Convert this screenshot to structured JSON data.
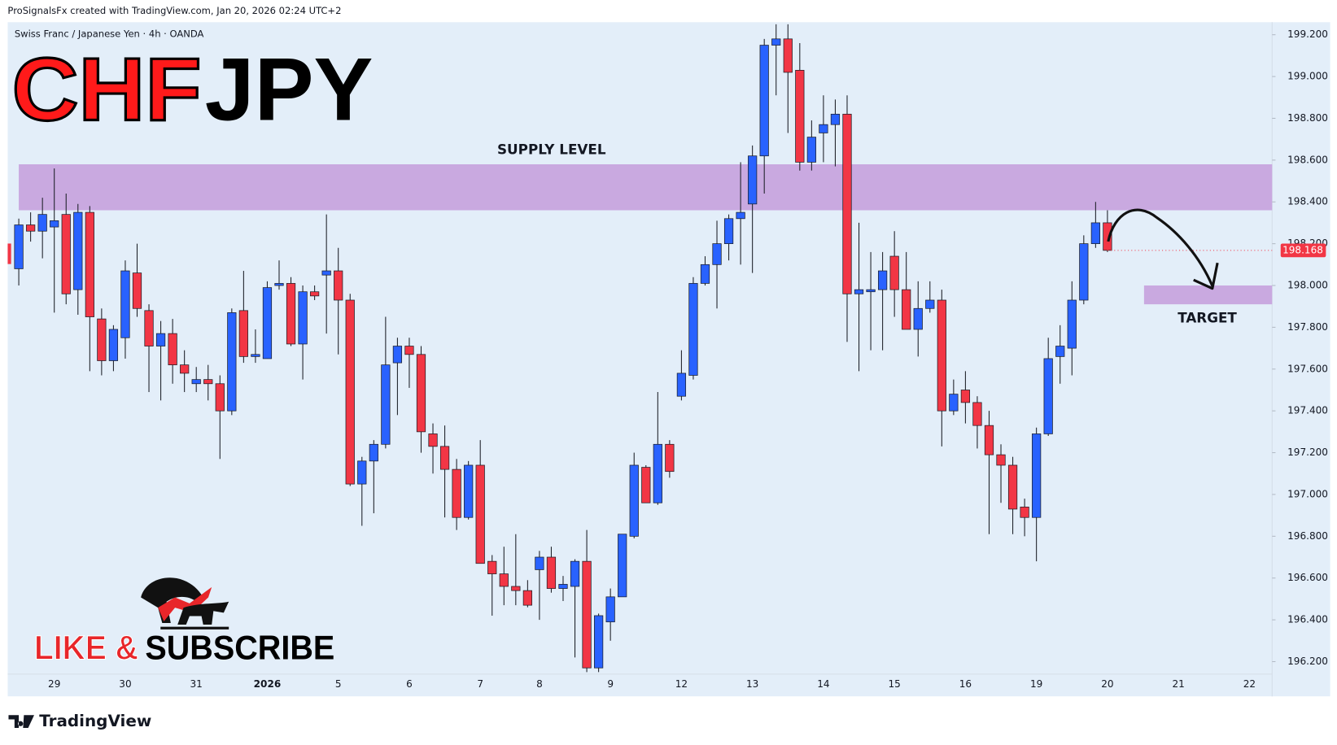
{
  "header": "ProSignalsFx created with TradingView.com, Jan 20, 2026 02:24 UTC+2",
  "footer": "TradingView",
  "call_to_action": [
    "LIKE &",
    "SUBSCRIBE"
  ],
  "chart_data": {
    "type": "candlestick",
    "title": {
      "base": "CHF",
      "quote": "JPY"
    },
    "subtitle": "Swiss Franc / Japanese Yen · 4h · OANDA",
    "up_color": "#2962ff",
    "down_color": "#f23645",
    "grid": false,
    "categories": [
      null,
      null,
      null,
      "29",
      null,
      null,
      null,
      null,
      null,
      "30",
      null,
      null,
      null,
      null,
      null,
      "31",
      null,
      null,
      null,
      null,
      null,
      "2026",
      null,
      null,
      null,
      null,
      null,
      "5",
      null,
      null,
      null,
      null,
      null,
      "6",
      null,
      null,
      null,
      null,
      null,
      "7",
      null,
      null,
      null,
      null,
      "8",
      null,
      null,
      null,
      null,
      null,
      "9",
      null,
      null,
      null,
      null,
      null,
      "12",
      null,
      null,
      null,
      null,
      null,
      "13",
      null,
      null,
      null,
      null,
      null,
      "14",
      null,
      null,
      null,
      null,
      null,
      "15",
      null,
      null,
      null,
      null,
      null,
      "16",
      null,
      null,
      null,
      null,
      null,
      "19",
      null,
      null,
      null,
      null,
      null,
      "20",
      null,
      null,
      null,
      null,
      null,
      "21",
      null,
      null,
      null,
      null,
      null,
      "22"
    ],
    "open": [
      198.08,
      198.29,
      198.26,
      198.28,
      198.34,
      197.98,
      198.35,
      197.84,
      197.64,
      197.75,
      198.06,
      197.88,
      197.71,
      197.77,
      197.62,
      197.53,
      197.55,
      197.53,
      197.4,
      197.88,
      197.66,
      197.65,
      198.0,
      198.01,
      197.72,
      197.97,
      198.05,
      198.07,
      197.93,
      197.05,
      197.16,
      197.24,
      197.63,
      197.71,
      197.67,
      197.29,
      197.23,
      197.12,
      196.89,
      197.14,
      196.68,
      196.62,
      196.56,
      196.54,
      196.64,
      196.7,
      196.55,
      196.56,
      196.68,
      196.17,
      196.39,
      196.51,
      196.8,
      197.13,
      196.96,
      197.24,
      197.47,
      197.57,
      198.01,
      198.1,
      198.2,
      198.32,
      198.39,
      198.62,
      199.15,
      199.18,
      199.03,
      198.59,
      198.73,
      198.77,
      198.82,
      197.96,
      197.97,
      197.98,
      198.14,
      197.98,
      197.79,
      197.89,
      197.93,
      197.4,
      197.5,
      197.44,
      197.33,
      197.19,
      197.14,
      196.94,
      196.89,
      197.29,
      197.66,
      197.7,
      197.93,
      198.2,
      198.3,
      null,
      null,
      null,
      null,
      null,
      null,
      null,
      null,
      null,
      null,
      null,
      null
    ],
    "high": [
      198.32,
      198.35,
      198.42,
      198.56,
      198.44,
      198.39,
      198.38,
      197.89,
      197.81,
      198.12,
      198.2,
      197.91,
      197.83,
      197.84,
      197.69,
      197.61,
      197.62,
      197.57,
      197.89,
      198.07,
      197.79,
      198.02,
      198.12,
      198.04,
      198.0,
      198.0,
      198.34,
      198.18,
      197.96,
      197.18,
      197.26,
      197.85,
      197.75,
      197.75,
      197.71,
      197.34,
      197.33,
      197.17,
      197.16,
      197.26,
      196.71,
      196.75,
      196.81,
      196.59,
      196.73,
      196.75,
      196.61,
      196.69,
      196.83,
      196.43,
      196.55,
      196.81,
      197.2,
      197.14,
      197.49,
      197.26,
      197.69,
      198.04,
      198.14,
      198.31,
      198.34,
      198.59,
      198.67,
      199.18,
      199.25,
      199.25,
      199.16,
      198.79,
      198.91,
      198.89,
      198.91,
      198.3,
      198.16,
      198.16,
      198.26,
      198.16,
      198.02,
      198.02,
      197.98,
      197.55,
      197.59,
      197.47,
      197.4,
      197.24,
      197.18,
      196.98,
      197.32,
      197.75,
      197.81,
      198.02,
      198.24,
      198.4,
      198.36,
      null,
      null,
      null,
      null,
      null,
      null,
      null,
      null,
      null,
      null,
      null,
      null
    ],
    "low": [
      198.0,
      198.21,
      198.13,
      197.87,
      197.91,
      197.86,
      197.59,
      197.57,
      197.59,
      197.65,
      197.85,
      197.49,
      197.45,
      197.53,
      197.49,
      197.49,
      197.45,
      197.17,
      197.38,
      197.63,
      197.63,
      197.65,
      197.98,
      197.71,
      197.55,
      197.93,
      197.77,
      197.67,
      197.04,
      196.85,
      196.91,
      197.22,
      197.38,
      197.51,
      197.2,
      197.1,
      196.89,
      196.83,
      196.88,
      196.67,
      196.42,
      196.47,
      196.47,
      196.46,
      196.4,
      196.53,
      196.49,
      196.22,
      196.15,
      196.15,
      196.3,
      196.51,
      196.79,
      196.96,
      196.95,
      197.08,
      197.45,
      197.55,
      198.0,
      197.89,
      198.12,
      198.1,
      198.06,
      198.44,
      198.91,
      198.73,
      198.55,
      198.55,
      198.59,
      198.57,
      197.73,
      197.59,
      197.69,
      197.69,
      197.85,
      197.79,
      197.66,
      197.87,
      197.23,
      197.38,
      197.34,
      197.22,
      196.81,
      196.96,
      196.81,
      196.8,
      196.68,
      197.28,
      197.53,
      197.57,
      197.91,
      198.18,
      198.16,
      null,
      null,
      null,
      null,
      null,
      null,
      null,
      null,
      null,
      null,
      null,
      null
    ],
    "close": [
      198.29,
      198.26,
      198.34,
      198.31,
      197.96,
      198.35,
      197.85,
      197.64,
      197.79,
      198.07,
      197.89,
      197.71,
      197.77,
      197.62,
      197.58,
      197.55,
      197.53,
      197.4,
      197.87,
      197.66,
      197.67,
      197.99,
      198.01,
      197.72,
      197.97,
      197.95,
      198.07,
      197.93,
      197.05,
      197.16,
      197.24,
      197.62,
      197.71,
      197.67,
      197.3,
      197.23,
      197.12,
      196.89,
      197.14,
      196.67,
      196.62,
      196.56,
      196.54,
      196.47,
      196.7,
      196.55,
      196.57,
      196.68,
      196.17,
      196.42,
      196.51,
      196.81,
      197.14,
      196.96,
      197.24,
      197.11,
      197.58,
      198.01,
      198.1,
      198.2,
      198.32,
      198.35,
      198.62,
      199.15,
      199.18,
      199.02,
      198.59,
      198.71,
      198.77,
      198.82,
      197.96,
      197.98,
      197.98,
      198.07,
      197.98,
      197.79,
      197.89,
      197.93,
      197.4,
      197.48,
      197.44,
      197.33,
      197.19,
      197.14,
      196.93,
      196.89,
      197.29,
      197.65,
      197.71,
      197.93,
      198.2,
      198.3,
      198.168,
      null,
      null,
      null,
      null,
      null,
      null,
      null,
      null,
      null,
      null,
      null,
      null
    ],
    "zones": [
      {
        "label": "SUPPLY LEVEL",
        "range": [
          198.36,
          198.58
        ],
        "color": "#c9a9e0"
      },
      {
        "label": "TARGET",
        "range": [
          197.91,
          198.0
        ],
        "color": "#c9a9e0"
      }
    ],
    "ylim": [
      196.14,
      199.26
    ],
    "yticks": [
      {
        "value": 196.2,
        "label": "196.200"
      },
      {
        "value": 196.4,
        "label": "196.400"
      },
      {
        "value": 196.6,
        "label": "196.600"
      },
      {
        "value": 196.8,
        "label": "196.800"
      },
      {
        "value": 197.0,
        "label": "197.000"
      },
      {
        "value": 197.2,
        "label": "197.200"
      },
      {
        "value": 197.4,
        "label": "197.400"
      },
      {
        "value": 197.6,
        "label": "197.600"
      },
      {
        "value": 197.8,
        "label": "197.800"
      },
      {
        "value": 198.0,
        "label": "198.000"
      },
      {
        "value": 198.2,
        "label": "198.200"
      },
      {
        "value": 198.4,
        "label": "198.400"
      },
      {
        "value": 198.6,
        "label": "198.600"
      },
      {
        "value": 198.8,
        "label": "198.800"
      },
      {
        "value": 199.0,
        "label": "199.000"
      },
      {
        "value": 199.2,
        "label": "199.200"
      }
    ]
  }
}
